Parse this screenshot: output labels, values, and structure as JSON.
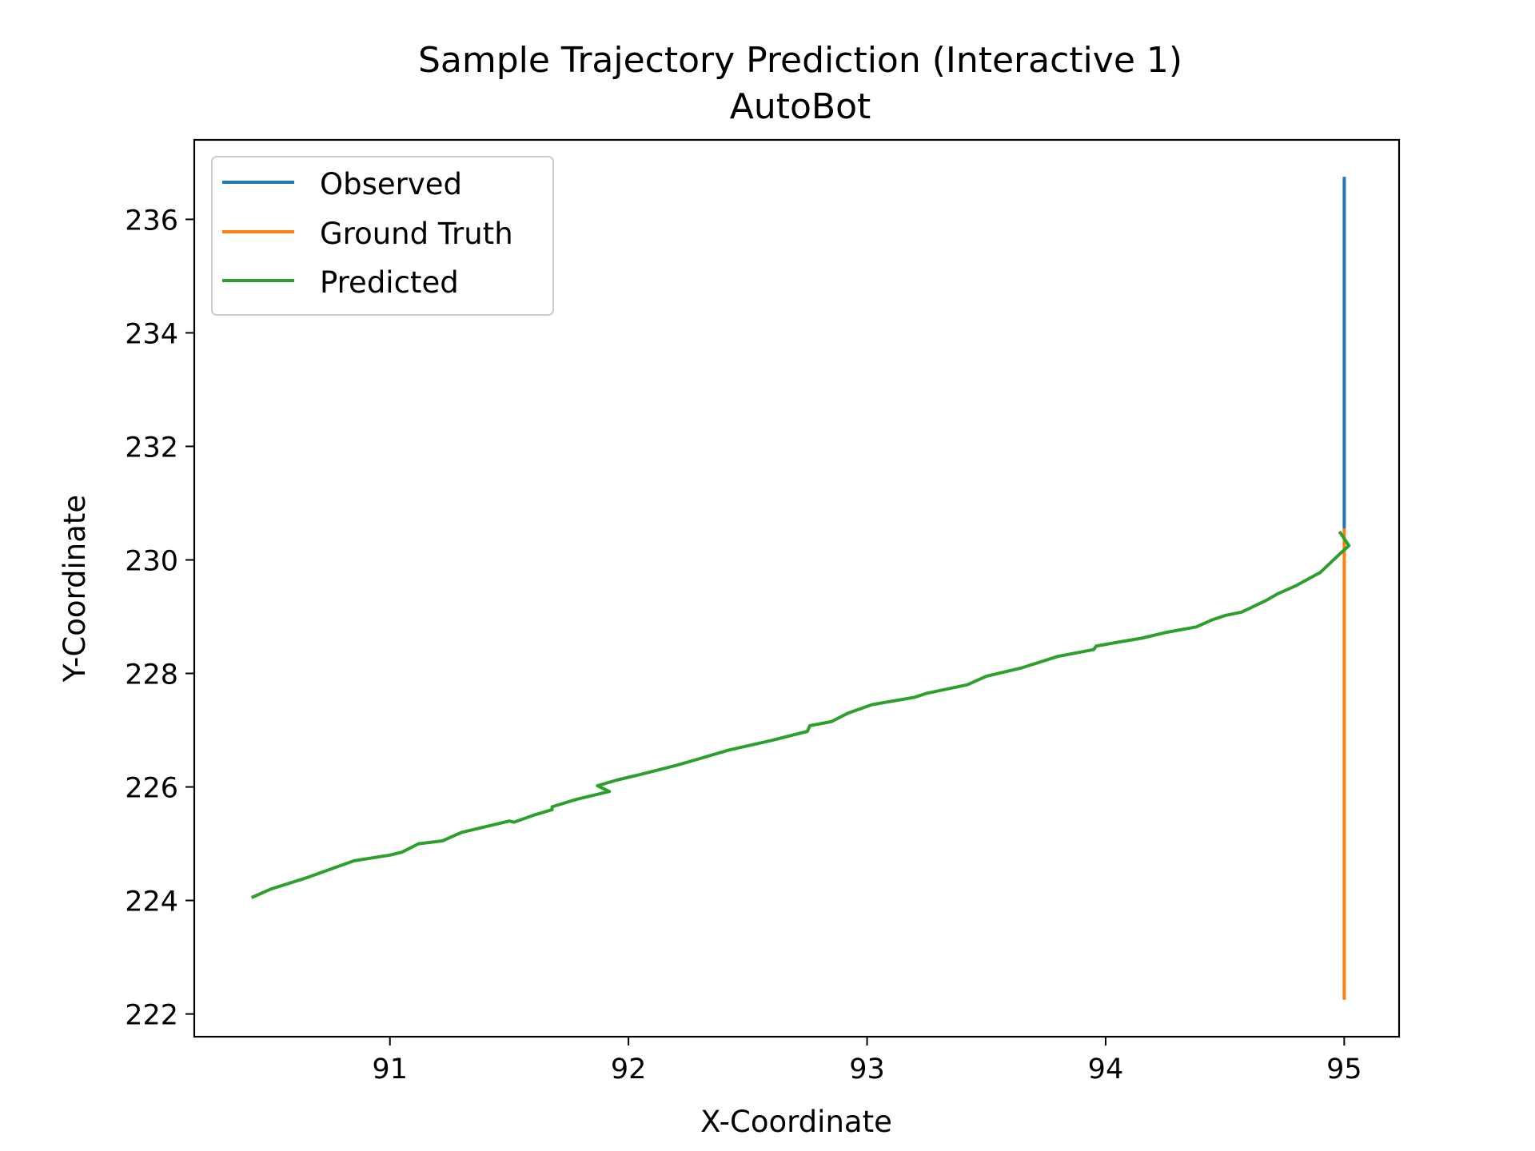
{
  "chart_data": {
    "type": "line",
    "title": "Sample Trajectory Prediction (Interactive 1)",
    "subtitle": "AutoBot",
    "xlabel": "X-Coordinate",
    "ylabel": "Y-Coordinate",
    "xlim": [
      90.18,
      95.23
    ],
    "ylim": [
      221.6,
      237.4
    ],
    "xticks": [
      91,
      92,
      93,
      94,
      95
    ],
    "xtick_labels": [
      "91",
      "92",
      "93",
      "94",
      "95"
    ],
    "yticks": [
      222,
      224,
      226,
      228,
      230,
      232,
      234,
      236
    ],
    "ytick_labels": [
      "222",
      "224",
      "226",
      "228",
      "230",
      "232",
      "234",
      "236"
    ],
    "grid": false,
    "legend_position": "top-left",
    "series": [
      {
        "name": "Observed",
        "color": "#1f77b4",
        "x": [
          95.0,
          95.0
        ],
        "y": [
          236.75,
          230.55
        ]
      },
      {
        "name": "Ground Truth",
        "color": "#ff7f0e",
        "x": [
          95.0,
          95.0
        ],
        "y": [
          230.55,
          222.25
        ]
      },
      {
        "name": "Predicted",
        "color": "#2ca02c",
        "x": [
          90.42,
          90.5,
          90.65,
          90.75,
          90.85,
          91.0,
          91.05,
          91.12,
          91.22,
          91.3,
          91.4,
          91.5,
          91.52,
          91.6,
          91.68,
          91.68,
          91.78,
          91.92,
          91.87,
          91.95,
          92.05,
          92.2,
          92.3,
          92.42,
          92.6,
          92.75,
          92.76,
          92.85,
          92.92,
          93.02,
          93.2,
          93.25,
          93.42,
          93.5,
          93.65,
          93.8,
          93.95,
          93.96,
          94.05,
          94.15,
          94.25,
          94.38,
          94.45,
          94.5,
          94.57,
          94.62,
          94.67,
          94.72,
          94.8,
          94.9,
          94.95,
          94.98,
          95.02,
          94.98
        ],
        "y": [
          224.05,
          224.2,
          224.4,
          224.55,
          224.7,
          224.8,
          224.85,
          225.0,
          225.05,
          225.2,
          225.3,
          225.4,
          225.38,
          225.5,
          225.6,
          225.65,
          225.78,
          225.92,
          226.02,
          226.12,
          226.22,
          226.38,
          226.5,
          226.65,
          226.82,
          226.98,
          227.08,
          227.15,
          227.3,
          227.45,
          227.58,
          227.65,
          227.8,
          227.95,
          228.1,
          228.3,
          228.42,
          228.48,
          228.55,
          228.62,
          228.72,
          228.82,
          228.95,
          229.02,
          229.08,
          229.18,
          229.28,
          229.4,
          229.55,
          229.78,
          229.98,
          230.1,
          230.25,
          230.5
        ]
      }
    ]
  }
}
